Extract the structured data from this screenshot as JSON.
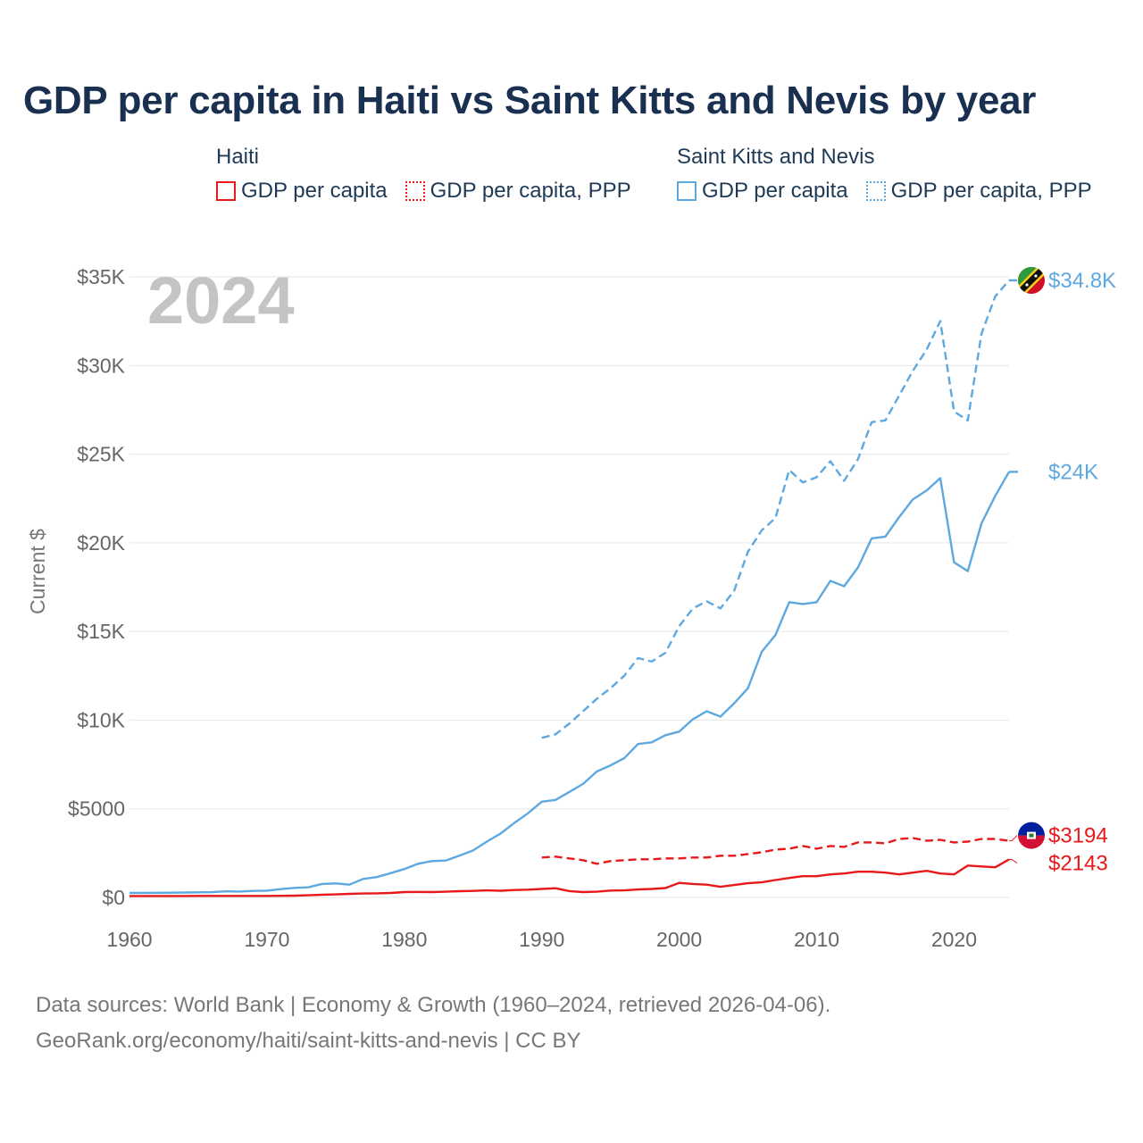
{
  "title": "GDP per capita in Haiti vs Saint Kitts and Nevis by year",
  "legend": {
    "haiti": {
      "title": "Haiti",
      "items": [
        "GDP per capita",
        "GDP per capita, PPP"
      ]
    },
    "skn": {
      "title": "Saint Kitts and Nevis",
      "items": [
        "GDP per capita",
        "GDP per capita, PPP"
      ]
    }
  },
  "year_label": "2024",
  "source": {
    "line1": "Data sources: World Bank | Economy & Growth (1960–2024, retrieved 2026-04-06).",
    "line2": "GeoRank.org/economy/haiti/saint-kitts-and-nevis | CC BY"
  },
  "colors": {
    "haiti": "#e8191a",
    "skn": "#5ea8e0",
    "grid": "#e6e6e6",
    "title": "#1a3050"
  },
  "chart_data": {
    "type": "line",
    "title": "GDP per capita in Haiti vs Saint Kitts and Nevis by year",
    "xlabel": "",
    "ylabel": "Current $",
    "xlim": [
      1960,
      2024
    ],
    "ylim": [
      0,
      35000
    ],
    "x_ticks": [
      1960,
      1970,
      1980,
      1990,
      2000,
      2010,
      2020
    ],
    "y_ticks": [
      0,
      5000,
      10000,
      15000,
      20000,
      25000,
      30000,
      35000
    ],
    "y_tick_labels": [
      "$0",
      "$5000",
      "$10K",
      "$15K",
      "$20K",
      "$25K",
      "$30K",
      "$35K"
    ],
    "series": [
      {
        "name": "Saint Kitts and Nevis GDP per capita, PPP",
        "country": "skn",
        "style": "dashed",
        "end_label": "$34.8K",
        "x": [
          1990,
          1991,
          1992,
          1993,
          1994,
          1995,
          1996,
          1997,
          1998,
          1999,
          2000,
          2001,
          2002,
          2003,
          2004,
          2005,
          2006,
          2007,
          2008,
          2009,
          2010,
          2011,
          2012,
          2013,
          2014,
          2015,
          2016,
          2017,
          2018,
          2019,
          2020,
          2021,
          2022,
          2023,
          2024
        ],
        "values": [
          9000,
          9200,
          9800,
          10500,
          11200,
          11800,
          12500,
          13500,
          13300,
          13800,
          15300,
          16300,
          16700,
          16300,
          17300,
          19500,
          20700,
          21400,
          24100,
          23400,
          23700,
          24600,
          23500,
          24700,
          26800,
          26900,
          28300,
          29700,
          30900,
          32500,
          27400,
          26900,
          31800,
          33900,
          34800
        ]
      },
      {
        "name": "Saint Kitts and Nevis GDP per capita",
        "country": "skn",
        "style": "solid",
        "end_label": "$24K",
        "x": [
          1960,
          1961,
          1962,
          1963,
          1964,
          1965,
          1966,
          1967,
          1968,
          1969,
          1970,
          1971,
          1972,
          1973,
          1974,
          1975,
          1976,
          1977,
          1978,
          1979,
          1980,
          1981,
          1982,
          1983,
          1984,
          1985,
          1986,
          1987,
          1988,
          1989,
          1990,
          1991,
          1992,
          1993,
          1994,
          1995,
          1996,
          1997,
          1998,
          1999,
          2000,
          2001,
          2002,
          2003,
          2004,
          2005,
          2006,
          2007,
          2008,
          2009,
          2010,
          2011,
          2012,
          2013,
          2014,
          2015,
          2016,
          2017,
          2018,
          2019,
          2020,
          2021,
          2022,
          2023,
          2024
        ],
        "values": [
          250,
          255,
          260,
          265,
          275,
          285,
          295,
          340,
          330,
          370,
          385,
          470,
          540,
          570,
          760,
          790,
          720,
          1040,
          1150,
          1370,
          1600,
          1900,
          2050,
          2080,
          2350,
          2650,
          3150,
          3600,
          4200,
          4750,
          5400,
          5500,
          5950,
          6400,
          7100,
          7450,
          7850,
          8650,
          8750,
          9150,
          9350,
          10050,
          10500,
          10200,
          10950,
          11800,
          13850,
          14800,
          16650,
          16550,
          16650,
          17850,
          17550,
          18600,
          20250,
          20350,
          21450,
          22450,
          22950,
          23650,
          18900,
          18400,
          21100,
          22650,
          24000
        ]
      },
      {
        "name": "Haiti GDP per capita, PPP",
        "country": "haiti",
        "style": "dashed",
        "end_label": "$3194",
        "x": [
          1990,
          1991,
          1992,
          1993,
          1994,
          1995,
          1996,
          1997,
          1998,
          1999,
          2000,
          2001,
          2002,
          2003,
          2004,
          2005,
          2006,
          2007,
          2008,
          2009,
          2010,
          2011,
          2012,
          2013,
          2014,
          2015,
          2016,
          2017,
          2018,
          2019,
          2020,
          2021,
          2022,
          2023,
          2024
        ],
        "values": [
          2250,
          2300,
          2200,
          2100,
          1900,
          2050,
          2100,
          2150,
          2150,
          2200,
          2200,
          2250,
          2250,
          2350,
          2350,
          2450,
          2550,
          2700,
          2750,
          2900,
          2750,
          2900,
          2850,
          3100,
          3100,
          3050,
          3300,
          3350,
          3200,
          3250,
          3100,
          3150,
          3300,
          3300,
          3194
        ]
      },
      {
        "name": "Haiti GDP per capita",
        "country": "haiti",
        "style": "solid",
        "end_label": "$2143",
        "x": [
          1960,
          1961,
          1962,
          1963,
          1964,
          1965,
          1966,
          1967,
          1968,
          1969,
          1970,
          1971,
          1972,
          1973,
          1974,
          1975,
          1976,
          1977,
          1978,
          1979,
          1980,
          1981,
          1982,
          1983,
          1984,
          1985,
          1986,
          1987,
          1988,
          1989,
          1990,
          1991,
          1992,
          1993,
          1994,
          1995,
          1996,
          1997,
          1998,
          1999,
          2000,
          2001,
          2002,
          2003,
          2004,
          2005,
          2006,
          2007,
          2008,
          2009,
          2010,
          2011,
          2012,
          2013,
          2014,
          2015,
          2016,
          2017,
          2018,
          2019,
          2020,
          2021,
          2022,
          2023,
          2024
        ],
        "values": [
          80,
          80,
          80,
          82,
          83,
          84,
          85,
          85,
          86,
          86,
          85,
          90,
          100,
          120,
          150,
          170,
          200,
          220,
          230,
          250,
          300,
          310,
          300,
          320,
          350,
          370,
          400,
          380,
          420,
          440,
          480,
          520,
          360,
          300,
          320,
          390,
          400,
          450,
          480,
          530,
          820,
          760,
          720,
          600,
          700,
          800,
          850,
          980,
          1100,
          1200,
          1200,
          1300,
          1350,
          1450,
          1450,
          1400,
          1300,
          1400,
          1500,
          1350,
          1300,
          1800,
          1750,
          1700,
          2143
        ]
      }
    ]
  }
}
